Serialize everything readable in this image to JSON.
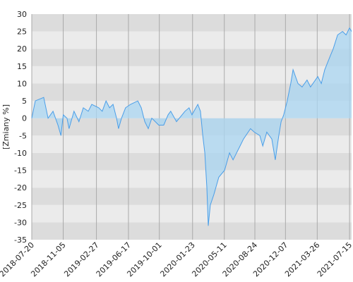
{
  "chart_data": {
    "type": "area",
    "y_label": "[Zmiany %]",
    "x": [
      "2018-07-20",
      "2018-08-01",
      "2018-08-30",
      "2018-09-14",
      "2018-10-01",
      "2018-10-18",
      "2018-10-28",
      "2018-11-05",
      "2018-11-18",
      "2018-11-25",
      "2018-12-12",
      "2018-12-29",
      "2019-01-13",
      "2019-01-30",
      "2019-02-11",
      "2019-03-07",
      "2019-03-19",
      "2019-04-01",
      "2019-04-13",
      "2019-04-25",
      "2019-05-07",
      "2019-05-14",
      "2019-05-24",
      "2019-06-07",
      "2019-06-24",
      "2019-07-19",
      "2019-07-31",
      "2019-08-12",
      "2019-08-24",
      "2019-09-05",
      "2019-09-29",
      "2019-10-16",
      "2019-10-31",
      "2019-11-09",
      "2019-11-29",
      "2019-12-28",
      "2020-01-11",
      "2020-01-21",
      "2020-02-10",
      "2020-02-19",
      "2020-02-27",
      "2020-03-05",
      "2020-03-12",
      "2020-03-17",
      "2020-03-24",
      "2020-04-05",
      "2020-04-22",
      "2020-05-12",
      "2020-05-29",
      "2020-06-10",
      "2020-07-04",
      "2020-07-16",
      "2020-08-09",
      "2020-08-22",
      "2020-09-10",
      "2020-09-20",
      "2020-10-04",
      "2020-10-21",
      "2020-11-02",
      "2020-11-14",
      "2020-11-22",
      "2020-12-01",
      "2020-12-13",
      "2020-12-25",
      "2021-01-02",
      "2021-01-19",
      "2021-02-02",
      "2021-02-19",
      "2021-03-03",
      "2021-03-28",
      "2021-04-09",
      "2021-04-21",
      "2021-05-10",
      "2021-05-20",
      "2021-06-04",
      "2021-06-21",
      "2021-07-03",
      "2021-07-15",
      "2021-07-22"
    ],
    "values": [
      0,
      5,
      6,
      0,
      2,
      -2,
      -5,
      1,
      0,
      -3,
      2,
      -1,
      3,
      2,
      4,
      3,
      2,
      5,
      3,
      4,
      0,
      -3,
      0,
      3,
      4,
      5,
      3,
      -1,
      -3,
      0,
      -2,
      -2,
      1,
      2,
      -1,
      2,
      3,
      1,
      4,
      2,
      -5,
      -10,
      -20,
      -31,
      -25,
      -22,
      -17,
      -15,
      -10,
      -12,
      -8,
      -6,
      -3,
      -4,
      -5,
      -8,
      -4,
      -6,
      -12,
      -5,
      -1,
      1,
      5,
      10,
      14,
      10,
      9,
      11,
      9,
      12,
      10,
      14,
      18,
      20,
      24,
      25,
      24,
      26,
      25
    ],
    "line_color": "#4a9ee8",
    "fill_color": "#a9d5f2",
    "xlim": [
      "2018-07-20",
      "2021-07-22"
    ],
    "xticks": [
      "2018-07-20",
      "2018-11-05",
      "2019-02-27",
      "2019-06-17",
      "2019-10-01",
      "2020-01-23",
      "2020-05-11",
      "2020-08-24",
      "2020-12-07",
      "2021-03-26",
      "2021-07-15"
    ],
    "ylim": [
      -35,
      30
    ],
    "yticks": [
      -35,
      -30,
      -25,
      -20,
      -15,
      -10,
      -5,
      0,
      5,
      10,
      15,
      20,
      25,
      30
    ],
    "grid": true
  }
}
